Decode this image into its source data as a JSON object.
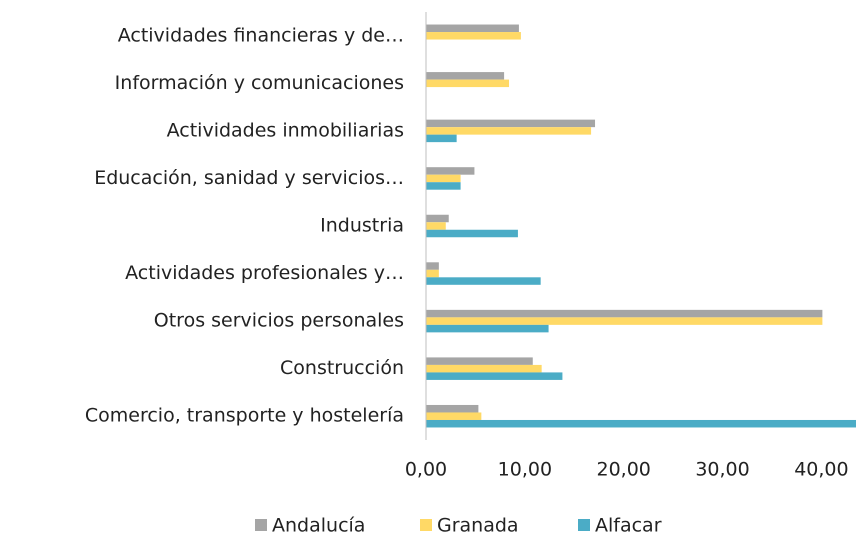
{
  "chart_data": {
    "type": "hbar",
    "categories": [
      "Actividades financieras y de…",
      "Información y comunicaciones",
      "Actividades inmobiliarias",
      "Educación, sanidad y servicios…",
      "Industria",
      "Actividades profesionales y…",
      "Otros servicios personales",
      "Construcción",
      "Comercio, transporte y hostelería"
    ],
    "series": [
      {
        "name": "Andalucía",
        "color": "#a5a5a5",
        "values": [
          9.4,
          7.9,
          17.1,
          4.9,
          2.3,
          1.3,
          40.1,
          10.8,
          5.3
        ]
      },
      {
        "name": "Granada",
        "color": "#ffd966",
        "values": [
          9.6,
          8.4,
          16.7,
          3.5,
          2.0,
          1.3,
          40.1,
          11.7,
          5.6
        ]
      },
      {
        "name": "Alfacar",
        "color": "#4bacc6",
        "values": [
          0,
          0,
          3.1,
          3.5,
          9.3,
          11.6,
          12.4,
          13.8,
          43.5
        ]
      }
    ],
    "xlim": [
      0,
      43.5
    ],
    "xticks": [
      {
        "value": 0,
        "label": "0,00"
      },
      {
        "value": 10,
        "label": "10,00"
      },
      {
        "value": 20,
        "label": "20,00"
      },
      {
        "value": 30,
        "label": "30,00"
      },
      {
        "value": 40,
        "label": "40,00"
      }
    ],
    "grid": false,
    "legend": "bottom"
  }
}
